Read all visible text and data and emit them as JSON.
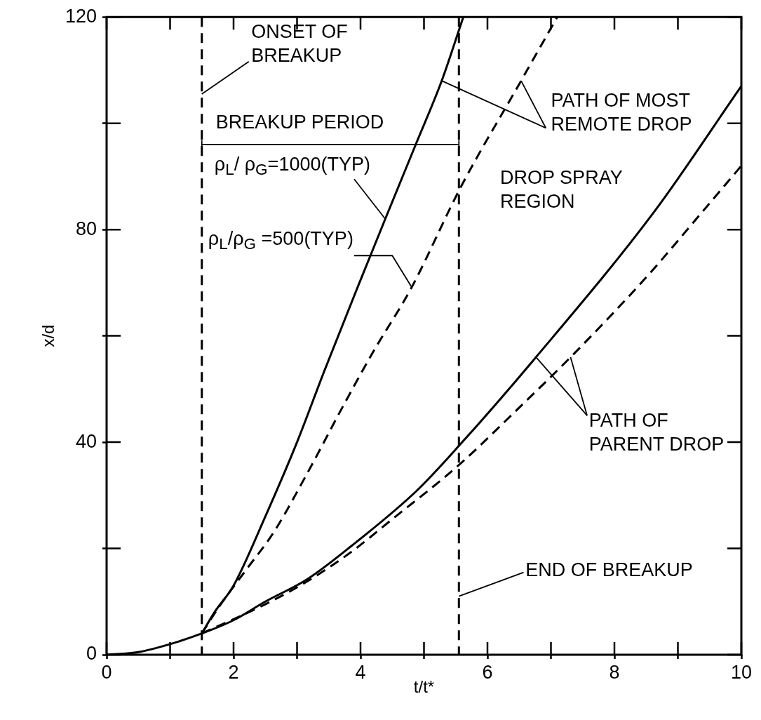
{
  "chart_data": {
    "type": "line",
    "xlabel": "t/t*",
    "ylabel": "x/d",
    "xlim": [
      0,
      10
    ],
    "ylim": [
      0,
      120
    ],
    "xticks": [
      0,
      {
        "value": 1,
        "label": null
      },
      2,
      {
        "value": 3,
        "label": null
      },
      4,
      {
        "value": 5,
        "label": null
      },
      6,
      {
        "value": 7,
        "label": null
      },
      8,
      {
        "value": 9,
        "label": null
      },
      10
    ],
    "yticks": [
      0,
      {
        "value": 20,
        "label": null
      },
      40,
      {
        "value": 60,
        "label": null
      },
      80,
      {
        "value": 100,
        "label": null
      },
      120
    ],
    "series": [
      {
        "type": "line",
        "color": "#000000",
        "line_style": "solid",
        "x": [
          1.5,
          1.7,
          2,
          2.5,
          3,
          3.43,
          4,
          4.39,
          4.87,
          5.28,
          5.62
        ],
        "values": [
          4,
          8,
          13,
          26,
          40,
          53.4,
          70.5,
          82,
          96,
          108,
          120
        ]
      },
      {
        "type": "line",
        "color": "#000000",
        "line_style": "dashed",
        "x": [
          1.5,
          1.77,
          2.2,
          2.63,
          3.2,
          3.69,
          4.2,
          4.8,
          5.58,
          6.53,
          7.1
        ],
        "values": [
          4,
          9,
          16,
          23,
          35,
          46,
          57,
          69,
          88,
          108,
          120
        ]
      },
      {
        "type": "line",
        "color": "#000000",
        "line_style": "solid",
        "x": [
          0,
          0.5,
          1,
          1.5,
          2,
          2.5,
          3.16,
          3.85,
          4.88,
          5.55,
          6.73,
          8.63,
          10
        ],
        "values": [
          0,
          0.5,
          2,
          4,
          6.5,
          10,
          14.2,
          20.4,
          30.8,
          39.3,
          55.5,
          83.4,
          107
        ]
      },
      {
        "type": "line",
        "color": "#000000",
        "line_style": "dashed",
        "x": [
          1.5,
          2.5,
          3.16,
          3.85,
          4.5,
          5.55,
          6.5,
          7.36,
          8.5,
          9.39,
          10
        ],
        "values": [
          4,
          9.5,
          13.8,
          19.3,
          25.5,
          35.7,
          46.5,
          56.6,
          71,
          83.4,
          92
        ]
      }
    ],
    "ref_lines": [
      {
        "axis": "x",
        "value": 1.5,
        "line_style": "dashed",
        "color": "#000000"
      },
      {
        "axis": "x",
        "value": 5.55,
        "line_style": "dashed",
        "color": "#000000"
      }
    ],
    "annotations": [
      {
        "text": "ONSET OF\nBREAKUP",
        "x": 1.5,
        "y": 105.5
      },
      {
        "text": "BREAKUP PERIOD",
        "x": 1.5,
        "y": 96
      },
      {
        "text": "ρ$_{L}$/ ρ$_{G}$=1000(TYP)",
        "x": 4.39,
        "y": 82
      },
      {
        "text": "ρ$_{L}$/ρ$_{G}$ =500(TYP)",
        "x": 4.8,
        "y": 69.3
      },
      {
        "text": "PATH OF MOST\nREMOTE DROP",
        "x": 5.28,
        "y": 108
      },
      "DROP SPRAY\nREGION",
      {
        "text": "PATH OF\nPARENT DROP",
        "x": 6.73,
        "y": 56
      },
      {
        "text": "END OF BREAKUP",
        "x": 5.55,
        "y": 11
      }
    ]
  }
}
